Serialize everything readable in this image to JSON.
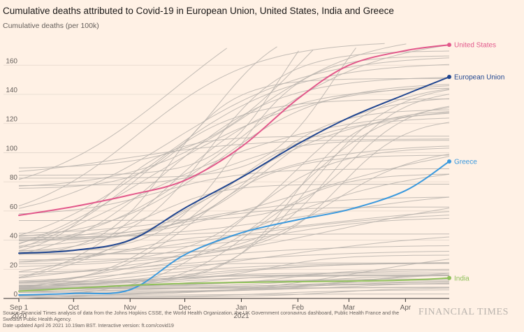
{
  "header": {
    "title": "Cumulative deaths attributed to Covid-19 in European Union, United States, India and Greece",
    "subtitle": "Cumulative deaths (per 100k)"
  },
  "footer": {
    "source": "Source: Financial Times analysis of data from the Johns Hopkins CSSE, the World Health Organization, the UK Government coronavirus dashboard, Public Health France and the Swedish Public Health Agency.",
    "updated": "Date updated April 26 2021 10.19am BST. Interactive version: ft.com/covid19",
    "brand": "FINANCIAL TIMES"
  },
  "colors": {
    "background": "#fff1e5",
    "grid": "#e3d7cc",
    "axis": "#33302e",
    "context_lines": "#b9b3ad",
    "united_states": "#e2588b",
    "european_union": "#1f4590",
    "greece": "#3a99de",
    "india": "#8fc05a"
  },
  "chart_data": {
    "type": "line",
    "title": "Cumulative deaths attributed to Covid-19 in European Union, United States, India and Greece",
    "ylabel": "Cumulative deaths (per 100k)",
    "x_range": [
      "2020-09-01",
      "2021-04-25"
    ],
    "ylim": [
      0,
      175
    ],
    "yticks": [
      0,
      20,
      40,
      60,
      80,
      100,
      120,
      140,
      160
    ],
    "xticks": [
      {
        "date": "2020-09-01",
        "label": "Sep 1",
        "sublabel": "2020"
      },
      {
        "date": "2020-10-01",
        "label": "Oct",
        "sublabel": ""
      },
      {
        "date": "2020-11-01",
        "label": "Nov",
        "sublabel": ""
      },
      {
        "date": "2020-12-01",
        "label": "Dec",
        "sublabel": ""
      },
      {
        "date": "2021-01-01",
        "label": "Jan",
        "sublabel": "2021"
      },
      {
        "date": "2021-02-01",
        "label": "Feb",
        "sublabel": ""
      },
      {
        "date": "2021-03-01",
        "label": "Mar",
        "sublabel": ""
      },
      {
        "date": "2021-04-01",
        "label": "Apr",
        "sublabel": ""
      }
    ],
    "grid": true,
    "highlighted_series": [
      {
        "name": "United States",
        "color_key": "united_states",
        "points": [
          [
            "2020-09-01",
            57
          ],
          [
            "2020-10-01",
            63
          ],
          [
            "2020-11-01",
            71
          ],
          [
            "2020-12-01",
            81
          ],
          [
            "2021-01-01",
            104
          ],
          [
            "2021-02-01",
            137
          ],
          [
            "2021-03-01",
            160
          ],
          [
            "2021-04-01",
            170
          ],
          [
            "2021-04-25",
            174
          ]
        ]
      },
      {
        "name": "European Union",
        "color_key": "european_union",
        "points": [
          [
            "2020-09-01",
            31
          ],
          [
            "2020-10-01",
            33
          ],
          [
            "2020-11-01",
            40
          ],
          [
            "2020-12-01",
            62
          ],
          [
            "2021-01-01",
            83
          ],
          [
            "2021-02-01",
            106
          ],
          [
            "2021-03-01",
            124
          ],
          [
            "2021-04-01",
            140
          ],
          [
            "2021-04-25",
            152
          ]
        ]
      },
      {
        "name": "Greece",
        "color_key": "greece",
        "points": [
          [
            "2020-09-01",
            2.4
          ],
          [
            "2020-10-01",
            3.5
          ],
          [
            "2020-11-01",
            6
          ],
          [
            "2020-12-01",
            30
          ],
          [
            "2021-01-01",
            45
          ],
          [
            "2021-02-01",
            54
          ],
          [
            "2021-03-01",
            61
          ],
          [
            "2021-04-01",
            74
          ],
          [
            "2021-04-25",
            94
          ]
        ]
      },
      {
        "name": "India",
        "color_key": "india",
        "points": [
          [
            "2020-09-01",
            5
          ],
          [
            "2020-10-01",
            7
          ],
          [
            "2020-11-01",
            9
          ],
          [
            "2020-12-01",
            10.3
          ],
          [
            "2021-01-01",
            11
          ],
          [
            "2021-02-01",
            11.5
          ],
          [
            "2021-03-01",
            11.9
          ],
          [
            "2021-04-01",
            12.6
          ],
          [
            "2021-04-25",
            14
          ]
        ]
      }
    ]
  }
}
